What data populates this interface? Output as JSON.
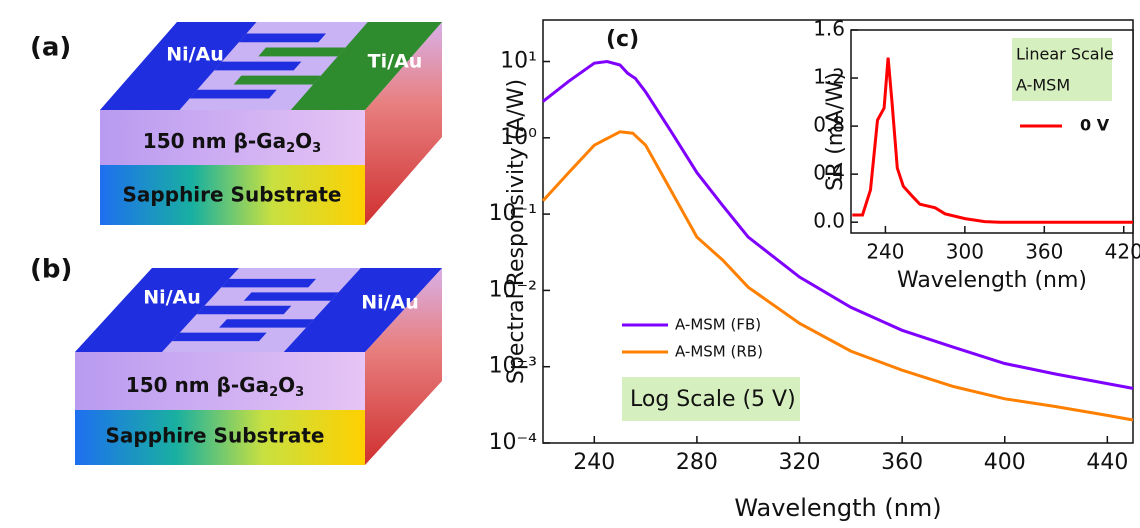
{
  "diagrams": [
    {
      "label": "(a)",
      "contacts": [
        "Ni/Au",
        "Ti/Au"
      ],
      "film": [
        "150 nm β-Ga",
        "2",
        "O",
        "3"
      ],
      "substrate": "Sapphire Substrate"
    },
    {
      "label": "(b)",
      "contacts": [
        "Ni/Au",
        "Ni/Au"
      ],
      "film": [
        "150 nm β-Ga",
        "2",
        "O",
        "3"
      ],
      "substrate": "Sapphire Substrate"
    }
  ],
  "chart_data": [
    {
      "type": "line",
      "panel_label": "(c)",
      "xlabel": "Wavelength (nm)",
      "ylabel": "Spectral Responsivity (A/W)",
      "xlim": [
        220,
        450
      ],
      "xticks": [
        240,
        280,
        320,
        360,
        400,
        440
      ],
      "log_y": true,
      "ylim": [
        0.0001,
        35
      ],
      "yticks": [
        {
          "value": 0.0001,
          "label": "10⁻⁴"
        },
        {
          "value": 0.001,
          "label": "10⁻³"
        },
        {
          "value": 0.01,
          "label": "10⁻²"
        },
        {
          "value": 0.1,
          "label": "10⁻¹"
        },
        {
          "value": 1,
          "label": "10⁰"
        },
        {
          "value": 10,
          "label": "10¹"
        }
      ],
      "legend": "lower left",
      "annotation": "Log Scale (5 V)",
      "series": [
        {
          "name": "A-MSM (FB)",
          "color": "#7f00ff",
          "x": [
            220,
            230,
            240,
            245,
            250,
            253,
            256,
            260,
            270,
            280,
            290,
            300,
            320,
            340,
            360,
            380,
            400,
            420,
            440,
            450
          ],
          "values": [
            3,
            5.5,
            9.5,
            10,
            9,
            7,
            6,
            4,
            1.2,
            0.35,
            0.13,
            0.05,
            0.015,
            0.006,
            0.003,
            0.0018,
            0.0011,
            0.0008,
            0.0006,
            0.00052
          ]
        },
        {
          "name": "A-MSM (RB)",
          "color": "#ff8000",
          "x": [
            220,
            230,
            240,
            250,
            255,
            260,
            270,
            280,
            290,
            300,
            320,
            340,
            360,
            380,
            400,
            420,
            440,
            450
          ],
          "values": [
            0.15,
            0.35,
            0.8,
            1.2,
            1.15,
            0.8,
            0.2,
            0.05,
            0.025,
            0.011,
            0.0037,
            0.0016,
            0.0009,
            0.00055,
            0.00038,
            0.0003,
            0.00023,
            0.0002
          ]
        }
      ]
    },
    {
      "type": "line",
      "xlabel": "Wavelength (nm)",
      "ylabel": "SR (mA/W)",
      "xlim": [
        214,
        427
      ],
      "xticks": [
        240,
        300,
        360,
        420
      ],
      "ylim": [
        -0.09,
        1.6
      ],
      "yticks": [
        {
          "value": 0,
          "label": "0.0"
        },
        0.4,
        0.8,
        1.2,
        1.6
      ],
      "legend": "upper right",
      "annotations": [
        "Linear Scale",
        "A-MSM"
      ],
      "series": [
        {
          "name": "0 V",
          "color": "#ff0000",
          "x": [
            215,
            222.7,
            228.7,
            234,
            239,
            242,
            245,
            249,
            253.5,
            260,
            266,
            277.6,
            285,
            300,
            315,
            326.6,
            427
          ],
          "values": [
            0.06,
            0.06,
            0.27,
            0.85,
            0.95,
            1.37,
            1.0,
            0.45,
            0.3,
            0.22,
            0.15,
            0.12,
            0.07,
            0.03,
            0.005,
            0,
            0
          ]
        }
      ]
    }
  ]
}
